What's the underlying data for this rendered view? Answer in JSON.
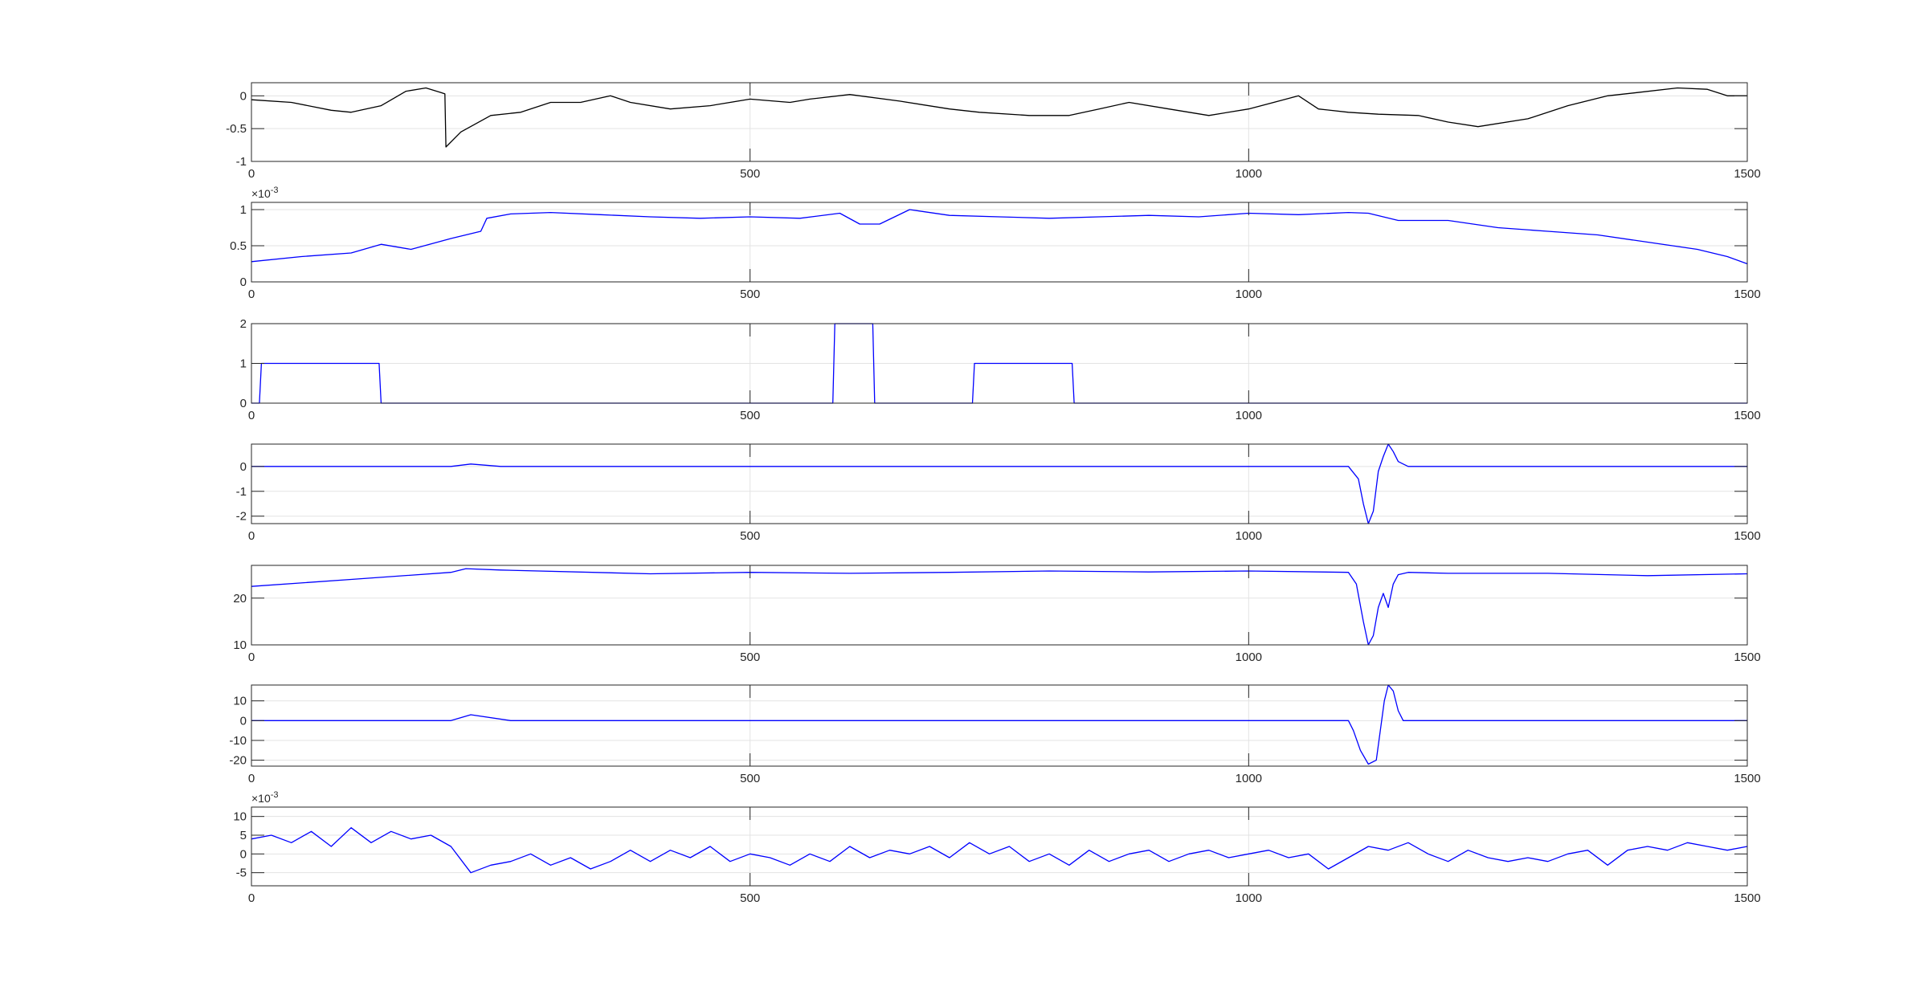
{
  "chart_data": [
    {
      "type": "line",
      "x_ticks": [
        "0",
        "500",
        "1000",
        "1500"
      ],
      "xlim": [
        0,
        1500
      ],
      "ylim": [
        -1,
        0.2
      ],
      "y_ticks": [
        {
          "v": 0,
          "label": "0"
        },
        {
          "v": -0.5,
          "label": "-0.5"
        },
        {
          "v": -1,
          "label": "-1"
        }
      ],
      "exponent": "",
      "grid": true,
      "line_color": "#000000",
      "series": [
        {
          "points": [
            [
              0,
              -0.06
            ],
            [
              40,
              -0.1
            ],
            [
              80,
              -0.22
            ],
            [
              100,
              -0.25
            ],
            [
              130,
              -0.15
            ],
            [
              155,
              0.07
            ],
            [
              175,
              0.12
            ],
            [
              190,
              0.05
            ],
            [
              194,
              0.03
            ],
            [
              195,
              -0.78
            ],
            [
              210,
              -0.55
            ],
            [
              240,
              -0.3
            ],
            [
              270,
              -0.25
            ],
            [
              300,
              -0.1
            ],
            [
              330,
              -0.1
            ],
            [
              360,
              0.0
            ],
            [
              380,
              -0.1
            ],
            [
              420,
              -0.2
            ],
            [
              460,
              -0.15
            ],
            [
              500,
              -0.05
            ],
            [
              540,
              -0.1
            ],
            [
              560,
              -0.05
            ],
            [
              600,
              0.02
            ],
            [
              650,
              -0.08
            ],
            [
              700,
              -0.2
            ],
            [
              730,
              -0.25
            ],
            [
              780,
              -0.3
            ],
            [
              820,
              -0.3
            ],
            [
              850,
              -0.2
            ],
            [
              880,
              -0.1
            ],
            [
              920,
              -0.2
            ],
            [
              960,
              -0.3
            ],
            [
              1000,
              -0.2
            ],
            [
              1030,
              -0.08
            ],
            [
              1050,
              0.0
            ],
            [
              1070,
              -0.2
            ],
            [
              1100,
              -0.25
            ],
            [
              1130,
              -0.28
            ],
            [
              1170,
              -0.3
            ],
            [
              1200,
              -0.4
            ],
            [
              1230,
              -0.47
            ],
            [
              1280,
              -0.35
            ],
            [
              1320,
              -0.15
            ],
            [
              1360,
              0.0
            ],
            [
              1390,
              0.05
            ],
            [
              1430,
              0.12
            ],
            [
              1460,
              0.1
            ],
            [
              1480,
              0.0
            ],
            [
              1500,
              0.0
            ]
          ]
        }
      ]
    },
    {
      "type": "line",
      "x_ticks": [
        "0",
        "500",
        "1000",
        "1500"
      ],
      "xlim": [
        0,
        1500
      ],
      "ylim": [
        0,
        1.1
      ],
      "y_ticks": [
        {
          "v": 0,
          "label": "0"
        },
        {
          "v": 0.5,
          "label": "0.5"
        },
        {
          "v": 1,
          "label": "1"
        }
      ],
      "exponent": "×10-3",
      "grid": true,
      "line_color": "#0000ff",
      "series": [
        {
          "points": [
            [
              0,
              0.28
            ],
            [
              50,
              0.35
            ],
            [
              100,
              0.4
            ],
            [
              130,
              0.52
            ],
            [
              160,
              0.45
            ],
            [
              200,
              0.6
            ],
            [
              230,
              0.7
            ],
            [
              236,
              0.88
            ],
            [
              260,
              0.94
            ],
            [
              300,
              0.96
            ],
            [
              350,
              0.93
            ],
            [
              400,
              0.9
            ],
            [
              450,
              0.88
            ],
            [
              500,
              0.9
            ],
            [
              550,
              0.88
            ],
            [
              590,
              0.95
            ],
            [
              610,
              0.8
            ],
            [
              630,
              0.8
            ],
            [
              660,
              1.0
            ],
            [
              700,
              0.92
            ],
            [
              750,
              0.9
            ],
            [
              800,
              0.88
            ],
            [
              850,
              0.9
            ],
            [
              900,
              0.92
            ],
            [
              950,
              0.9
            ],
            [
              1000,
              0.95
            ],
            [
              1050,
              0.93
            ],
            [
              1100,
              0.96
            ],
            [
              1120,
              0.95
            ],
            [
              1150,
              0.85
            ],
            [
              1200,
              0.85
            ],
            [
              1250,
              0.75
            ],
            [
              1300,
              0.7
            ],
            [
              1350,
              0.65
            ],
            [
              1400,
              0.55
            ],
            [
              1450,
              0.45
            ],
            [
              1480,
              0.35
            ],
            [
              1500,
              0.25
            ]
          ]
        }
      ]
    },
    {
      "type": "line",
      "x_ticks": [
        "0",
        "500",
        "1000",
        "1500"
      ],
      "xlim": [
        0,
        1500
      ],
      "ylim": [
        0,
        2
      ],
      "y_ticks": [
        {
          "v": 0,
          "label": "0"
        },
        {
          "v": 1,
          "label": "1"
        },
        {
          "v": 2,
          "label": "2"
        }
      ],
      "exponent": "",
      "grid": true,
      "line_color": "#0000ff",
      "series": [
        {
          "points": [
            [
              0,
              0
            ],
            [
              8,
              0
            ],
            [
              10,
              1
            ],
            [
              128,
              1
            ],
            [
              130,
              0
            ],
            [
              583,
              0
            ],
            [
              585,
              2
            ],
            [
              623,
              2
            ],
            [
              625,
              0
            ],
            [
              723,
              0
            ],
            [
              725,
              1
            ],
            [
              823,
              1
            ],
            [
              825,
              0
            ],
            [
              1500,
              0
            ]
          ]
        }
      ]
    },
    {
      "type": "line",
      "x_ticks": [
        "0",
        "500",
        "1000",
        "1500"
      ],
      "xlim": [
        0,
        1500
      ],
      "ylim": [
        -2.3,
        0.9
      ],
      "y_ticks": [
        {
          "v": 0,
          "label": "0"
        },
        {
          "v": -1,
          "label": "-1"
        },
        {
          "v": -2,
          "label": "-2"
        }
      ],
      "exponent": "",
      "grid": true,
      "line_color": "#0000ff",
      "series": [
        {
          "points": [
            [
              0,
              0
            ],
            [
              200,
              0
            ],
            [
              220,
              0.1
            ],
            [
              250,
              0
            ],
            [
              1100,
              0
            ],
            [
              1110,
              -0.5
            ],
            [
              1115,
              -1.5
            ],
            [
              1120,
              -2.3
            ],
            [
              1125,
              -1.8
            ],
            [
              1130,
              -0.2
            ],
            [
              1135,
              0.4
            ],
            [
              1140,
              0.9
            ],
            [
              1145,
              0.6
            ],
            [
              1150,
              0.2
            ],
            [
              1155,
              0.1
            ],
            [
              1160,
              0
            ],
            [
              1500,
              0
            ]
          ]
        }
      ]
    },
    {
      "type": "line",
      "x_ticks": [
        "0",
        "500",
        "1000",
        "1500"
      ],
      "xlim": [
        0,
        1500
      ],
      "ylim": [
        10,
        27
      ],
      "y_ticks": [
        {
          "v": 10,
          "label": "10"
        },
        {
          "v": 20,
          "label": "20"
        }
      ],
      "exponent": "",
      "grid": true,
      "line_color": "#0000ff",
      "series": [
        {
          "points": [
            [
              0,
              22.5
            ],
            [
              100,
              24
            ],
            [
              200,
              25.5
            ],
            [
              215,
              26.3
            ],
            [
              250,
              26
            ],
            [
              400,
              25.2
            ],
            [
              500,
              25.5
            ],
            [
              600,
              25.3
            ],
            [
              700,
              25.5
            ],
            [
              800,
              25.8
            ],
            [
              900,
              25.6
            ],
            [
              1000,
              25.8
            ],
            [
              1100,
              25.5
            ],
            [
              1108,
              23
            ],
            [
              1115,
              15
            ],
            [
              1120,
              10
            ],
            [
              1125,
              12
            ],
            [
              1130,
              18
            ],
            [
              1135,
              21
            ],
            [
              1140,
              18
            ],
            [
              1145,
              23
            ],
            [
              1150,
              25
            ],
            [
              1160,
              25.5
            ],
            [
              1200,
              25.3
            ],
            [
              1300,
              25.3
            ],
            [
              1400,
              24.8
            ],
            [
              1500,
              25.2
            ]
          ]
        }
      ]
    },
    {
      "type": "line",
      "x_ticks": [
        "0",
        "500",
        "1000",
        "1500"
      ],
      "xlim": [
        0,
        1500
      ],
      "ylim": [
        -23,
        18
      ],
      "y_ticks": [
        {
          "v": 10,
          "label": "10"
        },
        {
          "v": 0,
          "label": "0"
        },
        {
          "v": -10,
          "label": "-10"
        },
        {
          "v": -20,
          "label": "-20"
        }
      ],
      "exponent": "",
      "grid": true,
      "line_color": "#0000ff",
      "series": [
        {
          "points": [
            [
              0,
              0
            ],
            [
              200,
              0
            ],
            [
              220,
              3
            ],
            [
              260,
              0
            ],
            [
              1100,
              0
            ],
            [
              1105,
              -5
            ],
            [
              1112,
              -15
            ],
            [
              1120,
              -22
            ],
            [
              1128,
              -20
            ],
            [
              1132,
              -5
            ],
            [
              1136,
              10
            ],
            [
              1140,
              18
            ],
            [
              1145,
              15
            ],
            [
              1150,
              5
            ],
            [
              1155,
              0
            ],
            [
              1160,
              0
            ],
            [
              1500,
              0
            ]
          ]
        }
      ]
    },
    {
      "type": "line",
      "x_ticks": [
        "0",
        "500",
        "1000",
        "1500"
      ],
      "xlim": [
        0,
        1500
      ],
      "ylim": [
        -8.5,
        12.5
      ],
      "y_ticks": [
        {
          "v": 10,
          "label": "10"
        },
        {
          "v": 5,
          "label": "5"
        },
        {
          "v": 0,
          "label": "0"
        },
        {
          "v": -5,
          "label": "-5"
        }
      ],
      "exponent": "×10-3",
      "grid": true,
      "line_color": "#0000ff",
      "series": [
        {
          "points": [
            [
              0,
              4
            ],
            [
              20,
              5
            ],
            [
              40,
              3
            ],
            [
              60,
              6
            ],
            [
              80,
              2
            ],
            [
              100,
              7
            ],
            [
              120,
              3
            ],
            [
              140,
              6
            ],
            [
              160,
              4
            ],
            [
              180,
              5
            ],
            [
              200,
              2
            ],
            [
              220,
              -5
            ],
            [
              240,
              -3
            ],
            [
              260,
              -2
            ],
            [
              280,
              0
            ],
            [
              300,
              -3
            ],
            [
              320,
              -1
            ],
            [
              340,
              -4
            ],
            [
              360,
              -2
            ],
            [
              380,
              1
            ],
            [
              400,
              -2
            ],
            [
              420,
              1
            ],
            [
              440,
              -1
            ],
            [
              460,
              2
            ],
            [
              480,
              -2
            ],
            [
              500,
              0
            ],
            [
              520,
              -1
            ],
            [
              540,
              -3
            ],
            [
              560,
              0
            ],
            [
              580,
              -2
            ],
            [
              600,
              2
            ],
            [
              620,
              -1
            ],
            [
              640,
              1
            ],
            [
              660,
              0
            ],
            [
              680,
              2
            ],
            [
              700,
              -1
            ],
            [
              720,
              3
            ],
            [
              740,
              0
            ],
            [
              760,
              2
            ],
            [
              780,
              -2
            ],
            [
              800,
              0
            ],
            [
              820,
              -3
            ],
            [
              840,
              1
            ],
            [
              860,
              -2
            ],
            [
              880,
              0
            ],
            [
              900,
              1
            ],
            [
              920,
              -2
            ],
            [
              940,
              0
            ],
            [
              960,
              1
            ],
            [
              980,
              -1
            ],
            [
              1000,
              0
            ],
            [
              1020,
              1
            ],
            [
              1040,
              -1
            ],
            [
              1060,
              0
            ],
            [
              1080,
              -4
            ],
            [
              1100,
              -1
            ],
            [
              1120,
              2
            ],
            [
              1140,
              1
            ],
            [
              1160,
              3
            ],
            [
              1180,
              0
            ],
            [
              1200,
              -2
            ],
            [
              1220,
              1
            ],
            [
              1240,
              -1
            ],
            [
              1260,
              -2
            ],
            [
              1280,
              -1
            ],
            [
              1300,
              -2
            ],
            [
              1320,
              0
            ],
            [
              1340,
              1
            ],
            [
              1360,
              -3
            ],
            [
              1380,
              1
            ],
            [
              1400,
              2
            ],
            [
              1420,
              1
            ],
            [
              1440,
              3
            ],
            [
              1460,
              2
            ],
            [
              1480,
              1
            ],
            [
              1500,
              2
            ]
          ]
        }
      ]
    }
  ]
}
